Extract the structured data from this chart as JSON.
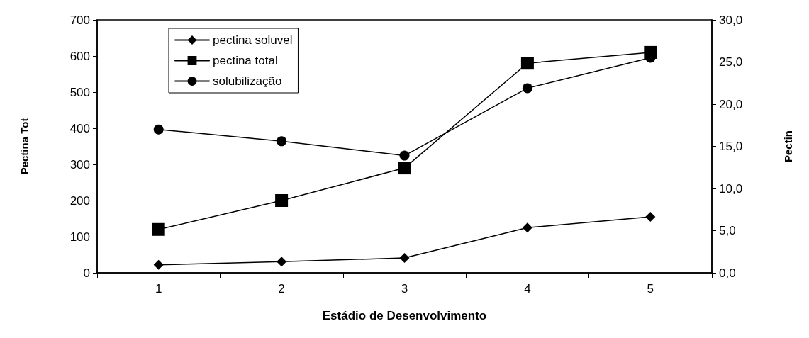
{
  "chart_data": {
    "type": "line",
    "xlabel": "Estádio de Desenvolvimento",
    "ylabel": "Pectina Tot",
    "y2label": "Pectin",
    "categories": [
      "1",
      "2",
      "3",
      "4",
      "5"
    ],
    "series": [
      {
        "name": "pectina soluvel",
        "color": "#000000",
        "marker": "diamond",
        "values": [
          22,
          31,
          41,
          125,
          155
        ]
      },
      {
        "name": "pectina total",
        "color": "#000000",
        "marker": "square",
        "values": [
          120,
          200,
          290,
          580,
          610
        ]
      },
      {
        "name": "solubilização",
        "color": "#000000",
        "marker": "circle",
        "axis": "y2",
        "values": [
          17.0,
          15.6,
          13.9,
          21.9,
          25.5
        ]
      }
    ],
    "ylim": [
      0,
      700
    ],
    "yticks": [
      0,
      100,
      200,
      300,
      400,
      500,
      600,
      700
    ],
    "y2lim": [
      0,
      30
    ],
    "y2ticks": [
      {
        "value": 0,
        "label": "0,0"
      },
      {
        "value": 5,
        "label": "5,0"
      },
      {
        "value": 10,
        "label": "10,0"
      },
      {
        "value": 15,
        "label": "15,0"
      },
      {
        "value": 20,
        "label": "20,0"
      },
      {
        "value": 25,
        "label": "25,0"
      },
      {
        "value": 30,
        "label": "30,0"
      }
    ],
    "legend": "top left",
    "grid": false,
    "line_style": "solid"
  }
}
